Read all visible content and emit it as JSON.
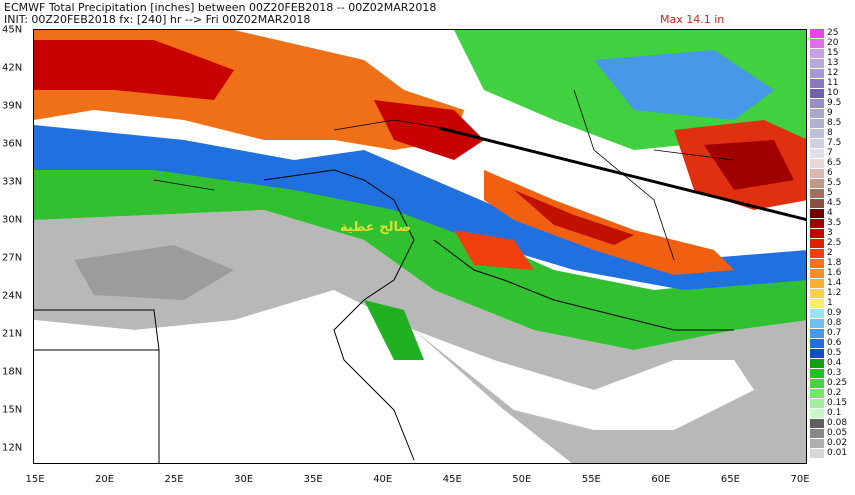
{
  "header": {
    "title": "ECMWF Total Precipitation [inches] between 00Z20FEB2018 -- 00Z02MAR2018",
    "init": "INIT: 00Z20FEB2018 fx: [240] hr --> Fri 00Z02MAR2018",
    "max_label": "Max 14.1 in"
  },
  "watermark": "صالح عطية",
  "axes": {
    "lat_labels": [
      "45N",
      "42N",
      "39N",
      "36N",
      "33N",
      "30N",
      "27N",
      "24N",
      "21N",
      "18N",
      "15N",
      "12N"
    ],
    "lon_labels": [
      "15E",
      "20E",
      "25E",
      "30E",
      "35E",
      "40E",
      "45E",
      "50E",
      "55E",
      "60E",
      "65E",
      "70E"
    ]
  },
  "legend": {
    "unit": "inches",
    "items": [
      {
        "label": "25",
        "color": "#f040f0"
      },
      {
        "label": "20",
        "color": "#e070e8"
      },
      {
        "label": "15",
        "color": "#c8a0e0"
      },
      {
        "label": "13",
        "color": "#b8a8d8"
      },
      {
        "label": "12",
        "color": "#a898d0"
      },
      {
        "label": "11",
        "color": "#8878c0"
      },
      {
        "label": "10",
        "color": "#7060b0"
      },
      {
        "label": "9.5",
        "color": "#9890b8"
      },
      {
        "label": "9",
        "color": "#a8a8c8"
      },
      {
        "label": "8.5",
        "color": "#b0b0d0"
      },
      {
        "label": "8",
        "color": "#c0c0d8"
      },
      {
        "label": "7.5",
        "color": "#d0d0e0"
      },
      {
        "label": "7",
        "color": "#e0e0e8"
      },
      {
        "label": "6.5",
        "color": "#e8d8d8"
      },
      {
        "label": "6",
        "color": "#d8b8b0"
      },
      {
        "label": "5.5",
        "color": "#c09888"
      },
      {
        "label": "5",
        "color": "#a07060"
      },
      {
        "label": "4.5",
        "color": "#885040"
      },
      {
        "label": "4",
        "color": "#700000"
      },
      {
        "label": "3.5",
        "color": "#a00000"
      },
      {
        "label": "3",
        "color": "#c80000"
      },
      {
        "label": "2.5",
        "color": "#e02000"
      },
      {
        "label": "2",
        "color": "#f04010"
      },
      {
        "label": "1.8",
        "color": "#f87018"
      },
      {
        "label": "1.6",
        "color": "#f89020"
      },
      {
        "label": "1.4",
        "color": "#f8b030"
      },
      {
        "label": "1.2",
        "color": "#f8d050"
      },
      {
        "label": "1",
        "color": "#f8f060"
      },
      {
        "label": "0.9",
        "color": "#a0e0f8"
      },
      {
        "label": "0.8",
        "color": "#70c0f0"
      },
      {
        "label": "0.7",
        "color": "#4898e8"
      },
      {
        "label": "0.6",
        "color": "#2070e0"
      },
      {
        "label": "0.5",
        "color": "#1050c0"
      },
      {
        "label": "0.4",
        "color": "#10a010"
      },
      {
        "label": "0.3",
        "color": "#20c020"
      },
      {
        "label": "0.25",
        "color": "#40d840"
      },
      {
        "label": "0.2",
        "color": "#70e870"
      },
      {
        "label": "0.15",
        "color": "#a0f0a0"
      },
      {
        "label": "0.1",
        "color": "#c8f8c8"
      },
      {
        "label": "0.08",
        "color": "#606060"
      },
      {
        "label": "0.05",
        "color": "#888888"
      },
      {
        "label": "0.02",
        "color": "#b0b0b0"
      },
      {
        "label": "0.01",
        "color": "#d8d8d8"
      }
    ]
  }
}
